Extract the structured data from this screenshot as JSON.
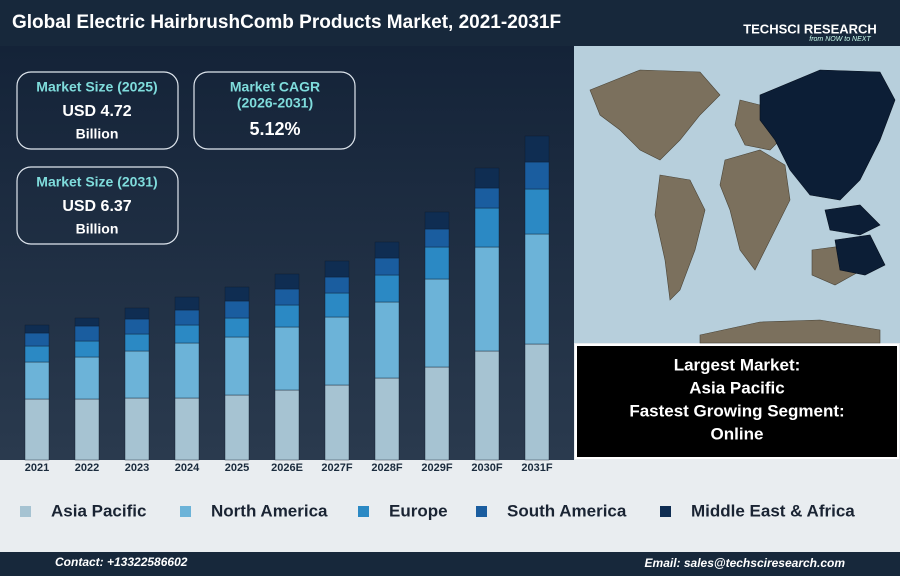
{
  "header": {
    "title": "Global Electric HairbrushComb Products Market, 2021-2031F",
    "logo": "TECHSCI RESEARCH",
    "tagline": "from NOW to NEXT"
  },
  "kpis": [
    {
      "label": "Market Size (2025)",
      "value": "USD 4.72",
      "unit": "Billion"
    },
    {
      "label": "Market CAGR",
      "sublabel": "(2026-2031)",
      "value": "5.12%"
    },
    {
      "label": "Market Size (2031)",
      "value": "USD 6.37",
      "unit": "Billion"
    }
  ],
  "highlights": [
    "Largest Market:",
    "Asia Pacific",
    "Fastest Growing Segment:",
    "Online"
  ],
  "chart_data": {
    "type": "bar",
    "stacked": true,
    "categories": [
      "2021",
      "2022",
      "2023",
      "2024",
      "2025",
      "2026E",
      "2027F",
      "2028F",
      "2029F",
      "2030F",
      "2031F"
    ],
    "series": [
      {
        "name": "Asia Pacific",
        "color": "#a6c3d2",
        "values": [
          61,
          61,
          62,
          62,
          65,
          70,
          75,
          82,
          93,
          109,
          116
        ]
      },
      {
        "name": "North America",
        "color": "#6cb3d8",
        "values": [
          37,
          42,
          47,
          55,
          58,
          63,
          68,
          76,
          88,
          104,
          110
        ]
      },
      {
        "name": "Europe",
        "color": "#2b89c4",
        "values": [
          16,
          16,
          17,
          18,
          19,
          22,
          24,
          27,
          32,
          39,
          45
        ]
      },
      {
        "name": "South America",
        "color": "#1a5d9f",
        "values": [
          13,
          15,
          15,
          15,
          17,
          16,
          16,
          17,
          18,
          20,
          27
        ]
      },
      {
        "name": "Middle East & Africa",
        "color": "#0f2d52",
        "values": [
          8,
          8,
          11,
          13,
          14,
          15,
          16,
          16,
          17,
          20,
          26
        ]
      }
    ]
  },
  "footer": {
    "contact": "Contact: +13322586602",
    "email": "Email: sales@techsciresearch.com"
  }
}
